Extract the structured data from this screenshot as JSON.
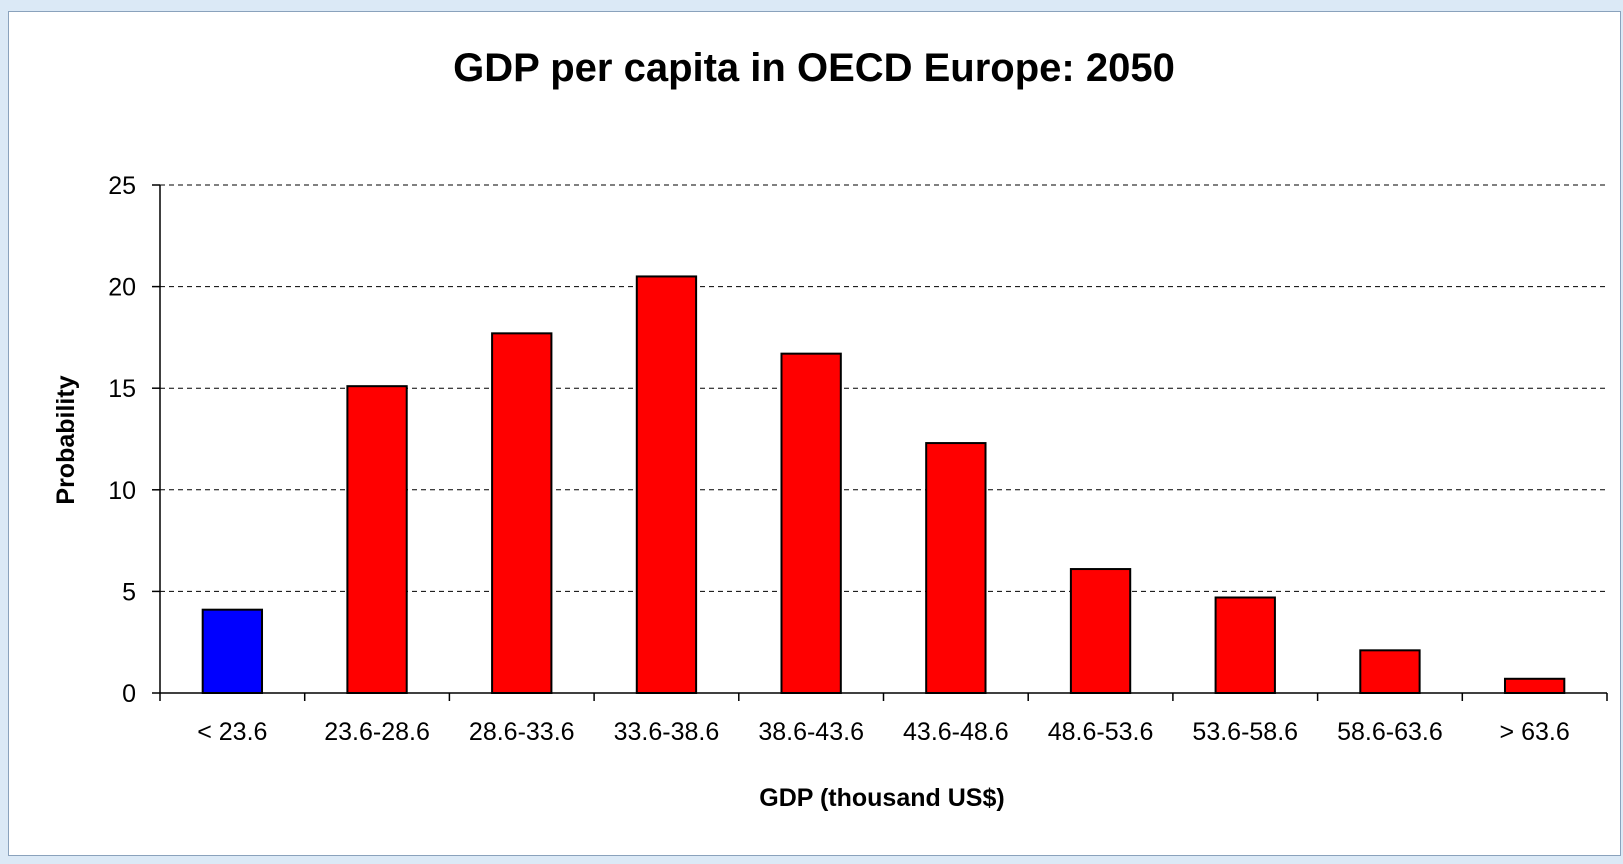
{
  "chart_data": {
    "type": "bar",
    "title": "GDP per capita in OECD Europe: 2050",
    "xlabel": "GDP (thousand US$)",
    "ylabel": "Probability",
    "categories": [
      "< 23.6",
      "23.6-28.6",
      "28.6-33.6",
      "33.6-38.6",
      "38.6-43.6",
      "43.6-48.6",
      "48.6-53.6",
      "53.6-58.6",
      "58.6-63.6",
      "> 63.6"
    ],
    "values": [
      4.1,
      15.1,
      17.7,
      20.5,
      16.7,
      12.3,
      6.1,
      4.7,
      2.1,
      0.7
    ],
    "bar_colors": [
      "#0000ff",
      "#ff0000",
      "#ff0000",
      "#ff0000",
      "#ff0000",
      "#ff0000",
      "#ff0000",
      "#ff0000",
      "#ff0000",
      "#ff0000"
    ],
    "ylim": [
      0,
      25
    ],
    "yticks": [
      0,
      5,
      10,
      15,
      20,
      25
    ],
    "grid": "horizontal dashed",
    "legend": "none"
  }
}
